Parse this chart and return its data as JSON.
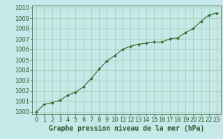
{
  "x": [
    0,
    1,
    2,
    3,
    4,
    5,
    6,
    7,
    8,
    9,
    10,
    11,
    12,
    13,
    14,
    15,
    16,
    17,
    18,
    19,
    20,
    21,
    22,
    23
  ],
  "y": [
    1000.0,
    1000.7,
    1000.9,
    1001.1,
    1001.6,
    1001.9,
    1002.4,
    1003.2,
    1004.1,
    1004.9,
    1005.4,
    1006.0,
    1006.3,
    1006.5,
    1006.6,
    1006.7,
    1006.7,
    1007.0,
    1007.1,
    1007.6,
    1008.0,
    1008.7,
    1009.3,
    1009.5
  ],
  "line_color": "#2d6a2d",
  "marker": "D",
  "marker_size": 2.0,
  "background_color": "#c5e8e8",
  "grid_color": "#a8c8a8",
  "xlabel": "Graphe pression niveau de la mer (hPa)",
  "xlabel_color": "#2d5a2d",
  "tick_label_color": "#2d5a2d",
  "ylim": [
    999.8,
    1010.2
  ],
  "yticks": [
    1000,
    1001,
    1002,
    1003,
    1004,
    1005,
    1006,
    1007,
    1008,
    1009,
    1010
  ],
  "xlim": [
    -0.5,
    23.5
  ],
  "xticks": [
    0,
    1,
    2,
    3,
    4,
    5,
    6,
    7,
    8,
    9,
    10,
    11,
    12,
    13,
    14,
    15,
    16,
    17,
    18,
    19,
    20,
    21,
    22,
    23
  ],
  "xlabel_fontsize": 7.0,
  "tick_fontsize": 6.0,
  "linewidth": 0.8
}
